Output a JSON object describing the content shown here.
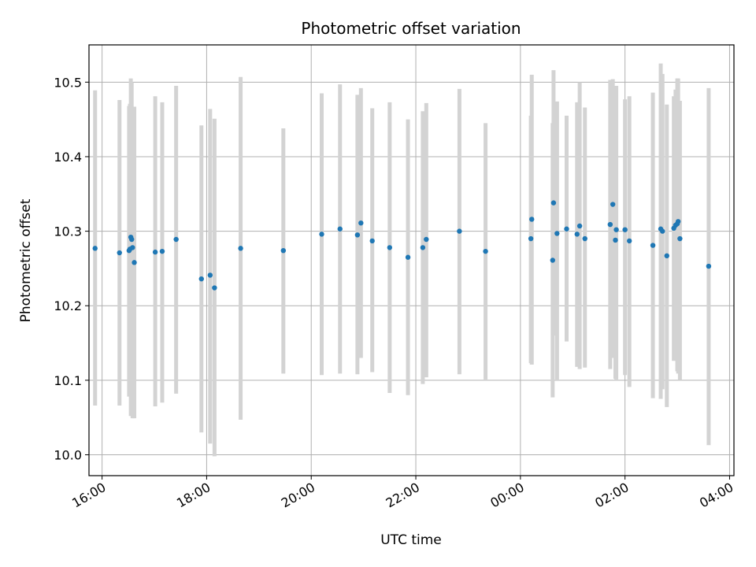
{
  "chart_data": {
    "type": "scatter",
    "title": "Photometric offset variation",
    "xlabel": "UTC time",
    "ylabel": "Photometric offset",
    "grid": true,
    "ylim": [
      9.972,
      10.55
    ],
    "yticks": [
      10.0,
      10.1,
      10.2,
      10.3,
      10.4,
      10.5
    ],
    "ytick_labels": [
      "10.0",
      "10.1",
      "10.2",
      "10.3",
      "10.4",
      "10.5"
    ],
    "x_range": [
      "15:45",
      "04:05"
    ],
    "xticks": [
      "16:00",
      "18:00",
      "20:00",
      "22:00",
      "00:00",
      "02:00",
      "04:00"
    ],
    "colors": {
      "points": "#1f77b4",
      "errorbars": "#d3d3d3",
      "grid": "#b0b0b0"
    },
    "series": [
      {
        "x": [
          "15:52",
          "16:20",
          "16:31",
          "16:32",
          "16:33",
          "16:34",
          "16:35",
          "16:37",
          "17:01",
          "17:09",
          "17:25",
          "17:54",
          "18:04",
          "18:09",
          "18:39",
          "19:28",
          "20:12",
          "20:33",
          "20:53",
          "20:57",
          "21:10",
          "21:30",
          "21:51",
          "22:08",
          "22:12",
          "22:50",
          "23:20",
          "00:12",
          "00:13",
          "00:37",
          "00:38",
          "00:42",
          "00:53",
          "01:05",
          "01:08",
          "01:14",
          "01:43",
          "01:46",
          "01:49",
          "01:50",
          "02:00",
          "02:05",
          "02:32",
          "02:41",
          "02:43",
          "02:48",
          "02:56",
          "02:58",
          "03:00",
          "03:01",
          "03:03",
          "03:36"
        ],
        "y": [
          10.277,
          10.271,
          10.274,
          10.276,
          10.292,
          10.289,
          10.278,
          10.258,
          10.272,
          10.273,
          10.289,
          10.236,
          10.241,
          10.224,
          10.277,
          10.274,
          10.296,
          10.303,
          10.295,
          10.311,
          10.287,
          10.278,
          10.265,
          10.278,
          10.289,
          10.3,
          10.273,
          10.29,
          10.316,
          10.261,
          10.338,
          10.297,
          10.303,
          10.296,
          10.307,
          10.29,
          10.309,
          10.336,
          10.288,
          10.302,
          10.302,
          10.287,
          10.281,
          10.303,
          10.3,
          10.267,
          10.304,
          10.308,
          10.31,
          10.313,
          10.29,
          10.253
        ],
        "yerr_low": [
          10.066,
          10.066,
          10.078,
          10.081,
          10.052,
          10.055,
          10.049,
          10.049,
          10.065,
          10.07,
          10.082,
          10.03,
          10.015,
          9.998,
          10.047,
          10.109,
          10.107,
          10.109,
          10.108,
          10.13,
          10.111,
          10.083,
          10.08,
          10.095,
          10.104,
          10.108,
          10.101,
          10.123,
          10.121,
          10.077,
          10.16,
          10.099,
          10.152,
          10.118,
          10.115,
          10.117,
          10.115,
          10.13,
          10.102,
          10.101,
          10.107,
          10.091,
          10.076,
          10.075,
          10.088,
          10.064,
          10.126,
          10.128,
          10.112,
          10.109,
          10.1,
          10.013
        ],
        "yerr_high": [
          10.489,
          10.476,
          10.468,
          10.471,
          10.505,
          10.5,
          10.467,
          10.467,
          10.481,
          10.473,
          10.495,
          10.442,
          10.464,
          10.451,
          10.507,
          10.438,
          10.485,
          10.497,
          10.483,
          10.492,
          10.465,
          10.473,
          10.45,
          10.461,
          10.472,
          10.491,
          10.445,
          10.455,
          10.51,
          10.445,
          10.516,
          10.474,
          10.455,
          10.473,
          10.5,
          10.466,
          10.503,
          10.504,
          10.47,
          10.495,
          10.477,
          10.481,
          10.486,
          10.525,
          10.511,
          10.47,
          10.481,
          10.49,
          10.505,
          10.505,
          10.475,
          10.492
        ]
      }
    ]
  }
}
